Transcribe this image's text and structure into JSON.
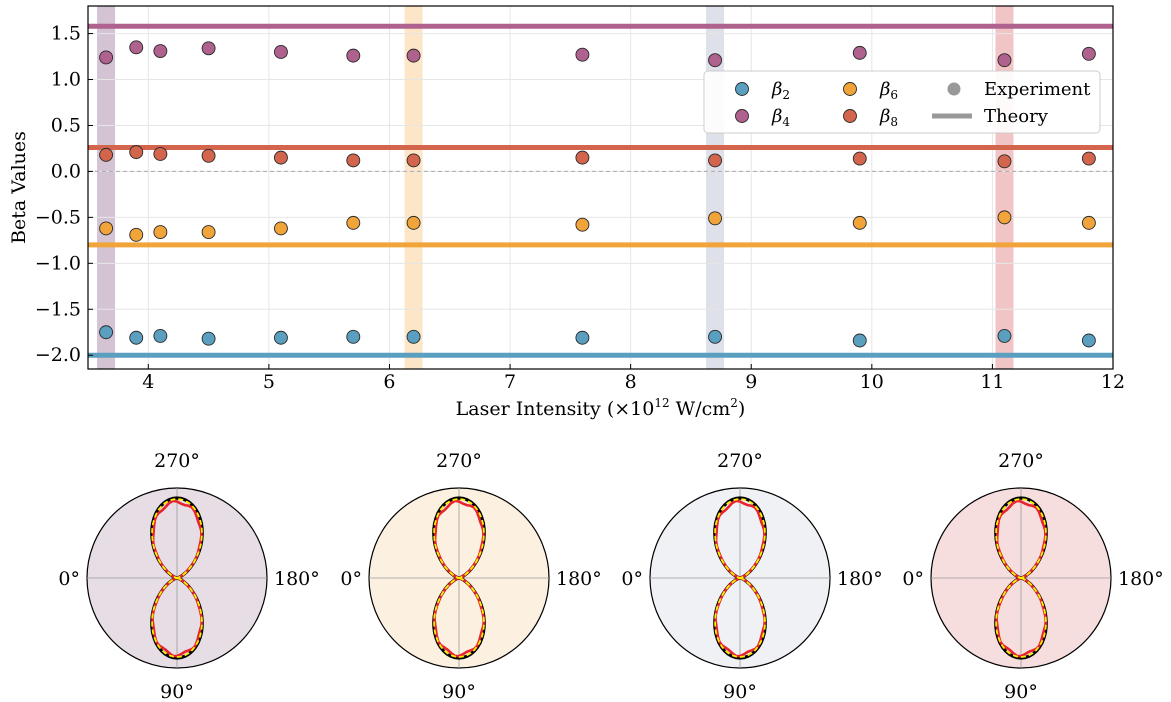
{
  "colors": {
    "beta2": "#5a9fbf",
    "beta4": "#b0628f",
    "beta6": "#f0a43a",
    "beta8": "#d2654c"
  },
  "chart_data": [
    {
      "type": "scatter",
      "title": "",
      "xlabel": "Laser Intensity (×10",
      "xlabel_sup": "12",
      "xlabel_tail": " W/cm",
      "xlabel_sup2": "2",
      "xlabel_end": ")",
      "ylabel": "Beta Values",
      "xlim": [
        3.5,
        12
      ],
      "ylim": [
        -2.15,
        1.8
      ],
      "xticks": [
        4,
        5,
        6,
        7,
        8,
        9,
        10,
        11,
        12
      ],
      "yticks": [
        -2.0,
        -1.5,
        -1.0,
        -0.5,
        0.0,
        0.5,
        1.0,
        1.5
      ],
      "ytick_labels": [
        "−2.0",
        "−1.5",
        "−1.0",
        "−0.5",
        "0.0",
        "0.5",
        "1.0",
        "1.5"
      ],
      "grid": true,
      "legend_position": "upper-right",
      "legend": {
        "entries": [
          {
            "key": "beta2",
            "symbol": "β",
            "sub": "2"
          },
          {
            "key": "beta6",
            "symbol": "β",
            "sub": "6"
          },
          {
            "key": "experiment",
            "label": "Experiment"
          },
          {
            "key": "beta4",
            "symbol": "β",
            "sub": "4"
          },
          {
            "key": "beta8",
            "symbol": "β",
            "sub": "8"
          },
          {
            "key": "theory",
            "label": "Theory"
          }
        ]
      },
      "x": [
        3.65,
        3.9,
        4.1,
        4.5,
        5.1,
        5.7,
        6.2,
        7.6,
        8.7,
        9.9,
        11.1,
        11.8
      ],
      "series": [
        {
          "key": "beta2",
          "values": [
            -1.75,
            -1.81,
            -1.79,
            -1.82,
            -1.81,
            -1.8,
            -1.8,
            -1.81,
            -1.8,
            -1.84,
            -1.79,
            -1.84
          ],
          "theory": -2.0
        },
        {
          "key": "beta4",
          "values": [
            1.24,
            1.35,
            1.31,
            1.34,
            1.3,
            1.26,
            1.26,
            1.27,
            1.21,
            1.29,
            1.21,
            1.28
          ],
          "theory": 1.58
        },
        {
          "key": "beta6",
          "values": [
            -0.62,
            -0.69,
            -0.66,
            -0.66,
            -0.62,
            -0.56,
            -0.56,
            -0.58,
            -0.51,
            -0.56,
            -0.5,
            -0.56
          ],
          "theory": -0.8
        },
        {
          "key": "beta8",
          "values": [
            0.18,
            0.21,
            0.19,
            0.17,
            0.15,
            0.12,
            0.12,
            0.15,
            0.12,
            0.14,
            0.11,
            0.14
          ],
          "theory": 0.26
        }
      ],
      "highlight_bands": [
        {
          "center": 3.65,
          "color": "#cbb9cb"
        },
        {
          "center": 6.2,
          "color": "#fbe2bd"
        },
        {
          "center": 8.7,
          "color": "#d8dbe6"
        },
        {
          "center": 11.1,
          "color": "#eebbbb"
        }
      ]
    },
    {
      "type": "polar",
      "angle_labels": {
        "left": "0°",
        "right": "180°",
        "top": "270°",
        "bottom": "90°"
      },
      "panels": [
        {
          "background": "#e6dde5"
        },
        {
          "background": "#fcf1e1"
        },
        {
          "background": "#f0f1f5"
        },
        {
          "background": "#f5dedd"
        }
      ]
    }
  ]
}
